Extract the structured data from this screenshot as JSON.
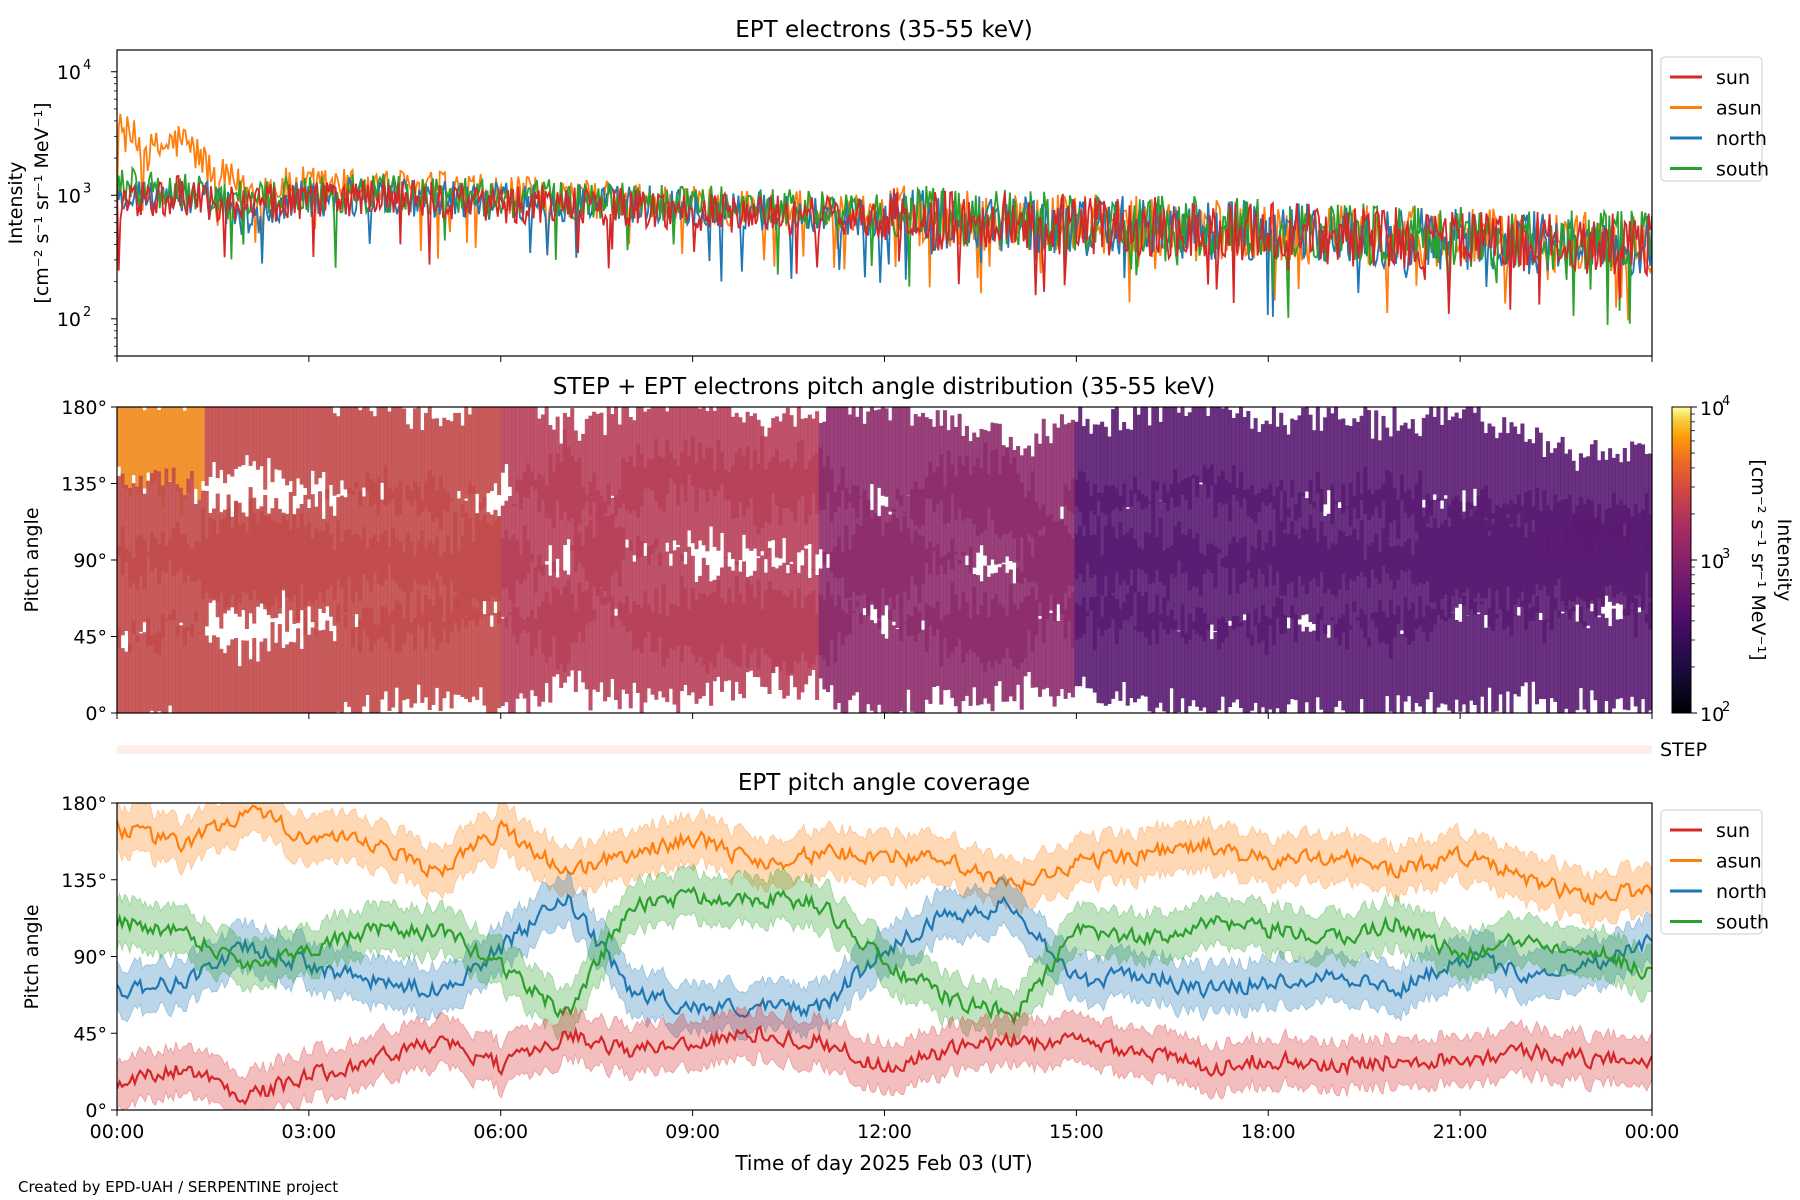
{
  "footer": "Created by EPD-UAH / SERPENTINE project",
  "xaxis": {
    "label": "Time of day 2025 Feb 03 (UT)",
    "ticks": [
      "00:00",
      "03:00",
      "06:00",
      "09:00",
      "12:00",
      "15:00",
      "18:00",
      "21:00",
      "00:00"
    ],
    "range_hours": [
      0,
      24
    ]
  },
  "colors": {
    "sun": "#d62728",
    "asun": "#ff7f0e",
    "north": "#1f77b4",
    "south": "#2ca02c"
  },
  "step_label": "STEP",
  "chart_data": [
    {
      "type": "line",
      "title": "EPT electrons (35-55 keV)",
      "ylabel_line1": "Intensity",
      "ylabel_line2": "[cm⁻² s⁻¹ sr⁻¹ MeV⁻¹]",
      "yscale": "log",
      "ylim": [
        50,
        15000
      ],
      "yticks": [
        {
          "value": 100,
          "base": "10",
          "exp": "2"
        },
        {
          "value": 1000,
          "base": "10",
          "exp": "3"
        },
        {
          "value": 10000,
          "base": "10",
          "exp": "4"
        }
      ],
      "legend_position": "outside-right",
      "x_hours": [
        0,
        0.5,
        1,
        1.5,
        2,
        3,
        4,
        5,
        6,
        8,
        10,
        12,
        14,
        16,
        18,
        20,
        22,
        24
      ],
      "series": [
        {
          "name": "sun",
          "values": [
            900,
            950,
            1000,
            900,
            850,
            900,
            950,
            900,
            850,
            800,
            700,
            650,
            600,
            550,
            500,
            450,
            420,
            400
          ]
        },
        {
          "name": "asun",
          "values": [
            3500,
            2200,
            2800,
            1500,
            1100,
            1200,
            1150,
            1100,
            1000,
            900,
            800,
            700,
            600,
            560,
            500,
            460,
            430,
            420
          ]
        },
        {
          "name": "north",
          "values": [
            1100,
            1000,
            1000,
            900,
            600,
            950,
            1000,
            950,
            900,
            850,
            750,
            650,
            600,
            550,
            500,
            450,
            420,
            400
          ]
        },
        {
          "name": "south",
          "values": [
            1200,
            1150,
            1100,
            1000,
            900,
            1000,
            1050,
            1000,
            950,
            900,
            800,
            700,
            620,
            580,
            520,
            480,
            440,
            420
          ]
        }
      ]
    },
    {
      "type": "heatmap",
      "title": "STEP + EPT electrons pitch angle distribution (35-55 keV)",
      "ylabel": "Pitch angle",
      "ylim": [
        0,
        180
      ],
      "yticks": [
        "0°",
        "45°",
        "90°",
        "135°",
        "180°"
      ],
      "colorbar": {
        "label_line1": "Intensity",
        "label_line2": "[cm⁻² s⁻¹ sr⁻¹ MeV⁻¹]",
        "scale": "log",
        "range": [
          100,
          10000
        ],
        "ticks": [
          {
            "value": 100,
            "base": "10",
            "exp": "2"
          },
          {
            "value": 1000,
            "base": "10",
            "exp": "3"
          },
          {
            "value": 10000,
            "base": "10",
            "exp": "4"
          }
        ]
      }
    },
    {
      "type": "line",
      "title": "EPT pitch angle coverage",
      "ylabel": "Pitch angle",
      "ylim": [
        0,
        180
      ],
      "yticks": [
        "0°",
        "45°",
        "90°",
        "135°",
        "180°"
      ],
      "legend_position": "outside-right",
      "x_hours": [
        0,
        1,
        2,
        3,
        4,
        5,
        6,
        7,
        8,
        9,
        10,
        11,
        12,
        13,
        14,
        15,
        16,
        17,
        18,
        19,
        20,
        21,
        22,
        23,
        24
      ],
      "series": [
        {
          "name": "sun",
          "values": [
            15,
            25,
            8,
            20,
            30,
            40,
            25,
            45,
            35,
            40,
            45,
            40,
            25,
            35,
            40,
            40,
            35,
            25,
            30,
            25,
            30,
            30,
            35,
            30,
            30
          ]
        },
        {
          "name": "asun",
          "values": [
            165,
            155,
            175,
            160,
            155,
            140,
            165,
            140,
            150,
            160,
            145,
            150,
            150,
            145,
            130,
            145,
            150,
            155,
            145,
            150,
            140,
            150,
            135,
            125,
            130
          ]
        },
        {
          "name": "north",
          "values": [
            70,
            75,
            95,
            85,
            75,
            70,
            95,
            125,
            70,
            60,
            60,
            60,
            95,
            115,
            120,
            75,
            80,
            70,
            75,
            80,
            70,
            90,
            80,
            85,
            100
          ]
        },
        {
          "name": "south",
          "values": [
            110,
            105,
            85,
            95,
            105,
            105,
            85,
            55,
            120,
            125,
            125,
            120,
            85,
            65,
            55,
            105,
            100,
            110,
            105,
            100,
            110,
            90,
            100,
            95,
            80
          ]
        }
      ]
    }
  ]
}
